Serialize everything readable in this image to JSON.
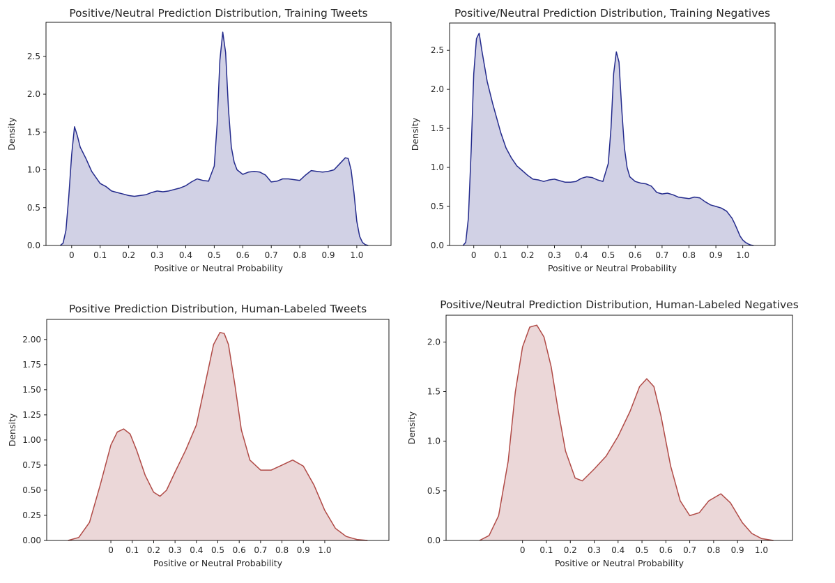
{
  "figure": {
    "colors": {
      "blue_line": "#232a8c",
      "blue_fill": "#c9c9e0",
      "red_line": "#b04a46",
      "red_fill": "#e8d0d1"
    }
  },
  "chart_data": [
    {
      "type": "area",
      "title": "Positive/Neutral Prediction Distribution, Training Tweets",
      "xlabel": "Positive or Neutral Probability",
      "ylabel": "Density",
      "xlim": [
        -0.09,
        1.12
      ],
      "ylim": [
        0,
        2.95
      ],
      "xticks": [
        0,
        0.1,
        0.2,
        0.3,
        0.4,
        0.5,
        0.6,
        0.7,
        0.8,
        0.9,
        1.0
      ],
      "xtick_labels": [
        "0",
        "0.1",
        "0.2",
        "0.3",
        "0.4",
        "0.5",
        "0.6",
        "0.7",
        "0.8",
        "0.9",
        "1.0"
      ],
      "yticks": [
        0,
        0.5,
        1.0,
        1.5,
        2.0,
        2.5
      ],
      "ytick_labels": [
        "0.0",
        "0.5",
        "1.0",
        "1.5",
        "2.0",
        "2.5"
      ],
      "grid": false,
      "color": "blue",
      "series": [
        {
          "x": [
            -0.04,
            -0.03,
            -0.02,
            -0.01,
            0.0,
            0.01,
            0.02,
            0.03,
            0.05,
            0.07,
            0.1,
            0.12,
            0.14,
            0.16,
            0.18,
            0.2,
            0.22,
            0.24,
            0.26,
            0.28,
            0.3,
            0.32,
            0.34,
            0.36,
            0.38,
            0.4,
            0.42,
            0.44,
            0.46,
            0.48,
            0.5,
            0.51,
            0.52,
            0.53,
            0.54,
            0.55,
            0.56,
            0.57,
            0.58,
            0.6,
            0.62,
            0.64,
            0.66,
            0.68,
            0.7,
            0.72,
            0.74,
            0.76,
            0.78,
            0.8,
            0.82,
            0.84,
            0.86,
            0.88,
            0.9,
            0.92,
            0.94,
            0.96,
            0.97,
            0.98,
            0.99,
            1.0,
            1.01,
            1.02,
            1.03,
            1.04
          ],
          "y": [
            0.0,
            0.03,
            0.2,
            0.65,
            1.2,
            1.57,
            1.45,
            1.3,
            1.15,
            0.98,
            0.82,
            0.78,
            0.72,
            0.7,
            0.68,
            0.66,
            0.65,
            0.66,
            0.67,
            0.7,
            0.72,
            0.71,
            0.72,
            0.74,
            0.76,
            0.79,
            0.84,
            0.88,
            0.86,
            0.85,
            1.05,
            1.6,
            2.45,
            2.82,
            2.55,
            1.8,
            1.3,
            1.1,
            1.0,
            0.94,
            0.97,
            0.98,
            0.97,
            0.93,
            0.84,
            0.85,
            0.88,
            0.88,
            0.87,
            0.86,
            0.93,
            0.99,
            0.98,
            0.97,
            0.98,
            1.0,
            1.08,
            1.16,
            1.15,
            1.0,
            0.7,
            0.32,
            0.12,
            0.04,
            0.01,
            0.0
          ]
        }
      ]
    },
    {
      "type": "area",
      "title": "Positive/Neutral Prediction Distribution, Training Negatives",
      "xlabel": "Positive or Neutral Probability",
      "ylabel": "Density",
      "xlim": [
        -0.09,
        1.12
      ],
      "ylim": [
        0,
        2.85
      ],
      "xticks": [
        0,
        0.1,
        0.2,
        0.3,
        0.4,
        0.5,
        0.6,
        0.7,
        0.8,
        0.9,
        1.0
      ],
      "xtick_labels": [
        "0",
        "0.1",
        "0.2",
        "0.3",
        "0.4",
        "0.5",
        "0.6",
        "0.7",
        "0.8",
        "0.9",
        "1.0"
      ],
      "yticks": [
        0,
        0.5,
        1.0,
        1.5,
        2.0,
        2.5
      ],
      "ytick_labels": [
        "0.0",
        "0.5",
        "1.0",
        "1.5",
        "2.0",
        "2.5"
      ],
      "grid": false,
      "color": "blue",
      "series": [
        {
          "x": [
            -0.04,
            -0.03,
            -0.02,
            -0.01,
            0.0,
            0.01,
            0.02,
            0.03,
            0.05,
            0.07,
            0.1,
            0.12,
            0.14,
            0.16,
            0.18,
            0.2,
            0.22,
            0.24,
            0.26,
            0.28,
            0.3,
            0.32,
            0.34,
            0.36,
            0.38,
            0.4,
            0.42,
            0.44,
            0.46,
            0.48,
            0.5,
            0.51,
            0.52,
            0.53,
            0.54,
            0.55,
            0.56,
            0.57,
            0.58,
            0.6,
            0.62,
            0.64,
            0.66,
            0.68,
            0.7,
            0.72,
            0.74,
            0.76,
            0.78,
            0.8,
            0.82,
            0.84,
            0.86,
            0.88,
            0.9,
            0.92,
            0.94,
            0.96,
            0.97,
            0.98,
            0.99,
            1.0,
            1.01,
            1.02,
            1.03,
            1.04
          ],
          "y": [
            0.0,
            0.04,
            0.35,
            1.2,
            2.2,
            2.65,
            2.72,
            2.5,
            2.1,
            1.82,
            1.45,
            1.25,
            1.12,
            1.02,
            0.96,
            0.9,
            0.85,
            0.84,
            0.82,
            0.84,
            0.85,
            0.83,
            0.81,
            0.81,
            0.82,
            0.86,
            0.88,
            0.87,
            0.84,
            0.82,
            1.05,
            1.5,
            2.2,
            2.48,
            2.35,
            1.75,
            1.25,
            1.0,
            0.88,
            0.82,
            0.8,
            0.79,
            0.76,
            0.68,
            0.66,
            0.67,
            0.65,
            0.62,
            0.61,
            0.6,
            0.62,
            0.61,
            0.56,
            0.52,
            0.5,
            0.48,
            0.44,
            0.35,
            0.28,
            0.2,
            0.12,
            0.07,
            0.04,
            0.02,
            0.005,
            0.0
          ]
        }
      ]
    },
    {
      "type": "area",
      "title": "Positive Prediction Distribution, Human-Labeled Tweets",
      "xlabel": "Positive or Neutral Probability",
      "ylabel": "Density",
      "xlim": [
        -0.3,
        1.3
      ],
      "ylim": [
        0,
        2.2
      ],
      "xticks": [
        0,
        0.1,
        0.2,
        0.3,
        0.4,
        0.5,
        0.6,
        0.7,
        0.8,
        0.9,
        1.0
      ],
      "xtick_labels": [
        "0",
        "0.1",
        "0.2",
        "0.3",
        "0.4",
        "0.5",
        "0.6",
        "0.7",
        "0.8",
        "0.9",
        "1.0"
      ],
      "yticks": [
        0,
        0.25,
        0.5,
        0.75,
        1.0,
        1.25,
        1.5,
        1.75,
        2.0
      ],
      "ytick_labels": [
        "0.00",
        "0.25",
        "0.50",
        "0.75",
        "1.00",
        "1.25",
        "1.50",
        "1.75",
        "2.00"
      ],
      "grid": false,
      "color": "red",
      "series": [
        {
          "x": [
            -0.2,
            -0.15,
            -0.1,
            -0.05,
            0.0,
            0.03,
            0.06,
            0.09,
            0.12,
            0.16,
            0.2,
            0.23,
            0.26,
            0.3,
            0.35,
            0.4,
            0.44,
            0.48,
            0.51,
            0.53,
            0.55,
            0.58,
            0.61,
            0.65,
            0.7,
            0.75,
            0.8,
            0.85,
            0.9,
            0.95,
            1.0,
            1.05,
            1.1,
            1.15,
            1.2
          ],
          "y": [
            0.0,
            0.03,
            0.18,
            0.55,
            0.95,
            1.08,
            1.11,
            1.06,
            0.9,
            0.65,
            0.48,
            0.44,
            0.5,
            0.68,
            0.9,
            1.15,
            1.55,
            1.95,
            2.07,
            2.06,
            1.95,
            1.55,
            1.1,
            0.8,
            0.7,
            0.7,
            0.75,
            0.8,
            0.74,
            0.55,
            0.3,
            0.12,
            0.04,
            0.01,
            0.0
          ]
        }
      ]
    },
    {
      "type": "area",
      "title": "Positive/Neutral Prediction Distribution, Human-Labeled Negatives",
      "xlabel": "Positive or Neutral Probability",
      "ylabel": "Density",
      "xlim": [
        -0.32,
        1.13
      ],
      "ylim": [
        0,
        2.27
      ],
      "xticks": [
        0,
        0.1,
        0.2,
        0.3,
        0.4,
        0.5,
        0.6,
        0.7,
        0.8,
        0.9,
        1.0
      ],
      "xtick_labels": [
        "0",
        "0.1",
        "0.2",
        "0.3",
        "0.4",
        "0.5",
        "0.6",
        "0.7",
        "0.8",
        "0.9",
        "1.0"
      ],
      "yticks": [
        0,
        0.5,
        1.0,
        1.5,
        2.0
      ],
      "ytick_labels": [
        "0.0",
        "0.5",
        "1.0",
        "1.5",
        "2.0"
      ],
      "grid": false,
      "color": "red",
      "series": [
        {
          "x": [
            -0.18,
            -0.14,
            -0.1,
            -0.06,
            -0.03,
            0.0,
            0.03,
            0.06,
            0.09,
            0.12,
            0.15,
            0.18,
            0.22,
            0.25,
            0.3,
            0.35,
            0.4,
            0.45,
            0.49,
            0.52,
            0.55,
            0.58,
            0.62,
            0.66,
            0.7,
            0.74,
            0.78,
            0.83,
            0.87,
            0.92,
            0.96,
            1.0,
            1.05
          ],
          "y": [
            0.0,
            0.05,
            0.25,
            0.8,
            1.5,
            1.95,
            2.15,
            2.17,
            2.05,
            1.75,
            1.3,
            0.9,
            0.63,
            0.6,
            0.72,
            0.85,
            1.05,
            1.3,
            1.55,
            1.63,
            1.55,
            1.25,
            0.75,
            0.4,
            0.25,
            0.28,
            0.4,
            0.47,
            0.38,
            0.18,
            0.07,
            0.02,
            0.0
          ]
        }
      ]
    }
  ]
}
